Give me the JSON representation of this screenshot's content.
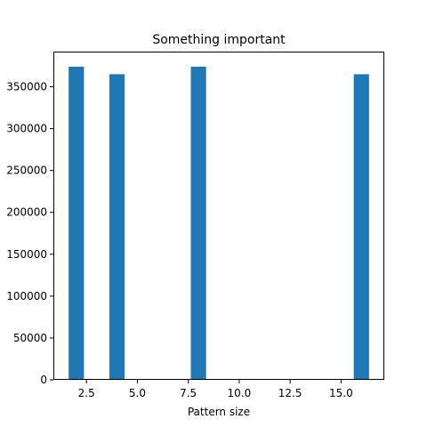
{
  "chart_data": {
    "type": "bar",
    "title": "Something important",
    "xlabel": "Pattern size",
    "ylabel": "",
    "bin_width": 0.75,
    "bars": [
      {
        "x": 2,
        "value": 374000
      },
      {
        "x": 4,
        "value": 365000
      },
      {
        "x": 8,
        "value": 374000
      },
      {
        "x": 16,
        "value": 365000
      }
    ],
    "xlim": [
      0.875,
      17.125
    ],
    "ylim": [
      0,
      392000
    ],
    "xticks": [
      2.5,
      5.0,
      7.5,
      10.0,
      12.5,
      15.0
    ],
    "xtick_labels": [
      "2.5",
      "5.0",
      "7.5",
      "10.0",
      "12.5",
      "15.0"
    ],
    "yticks": [
      0,
      50000,
      100000,
      150000,
      200000,
      250000,
      300000,
      350000
    ],
    "ytick_labels": [
      "0",
      "50000",
      "100000",
      "150000",
      "200000",
      "250000",
      "300000",
      "350000"
    ],
    "bar_color": "#1f77b4",
    "grid": false,
    "legend": "none"
  }
}
